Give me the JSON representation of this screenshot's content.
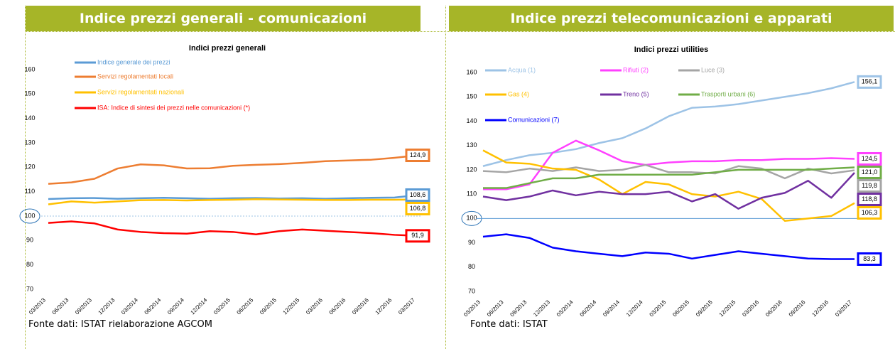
{
  "headers": [
    "Indice prezzi generali - comunicazioni",
    "Indice prezzi telecomunicazioni e apparati"
  ],
  "sources": [
    "Fonte dati: ISTAT rielaborazione AGCOM",
    "Fonte dati: ISTAT"
  ],
  "chart_data": [
    {
      "type": "line",
      "title": "Indici prezzi generali",
      "categories": [
        "03/2013",
        "06/2013",
        "09/2013",
        "12/2013",
        "03/2014",
        "06/2014",
        "09/2014",
        "12/2014",
        "03/2015",
        "06/2015",
        "09/2015",
        "12/2015",
        "03/2016",
        "06/2016",
        "09/2016",
        "12/2016",
        "03/2017"
      ],
      "ylim": [
        70,
        160
      ],
      "yticks": [
        70,
        80,
        90,
        100,
        110,
        120,
        130,
        140,
        150,
        160
      ],
      "reference_line": 100,
      "series": [
        {
          "name": "Indice generale dei prezzi",
          "color": "#5b9bd5",
          "values": [
            107.0,
            107.3,
            107.4,
            107.1,
            107.3,
            107.5,
            107.3,
            107.1,
            107.3,
            107.4,
            107.2,
            107.3,
            107.1,
            107.3,
            107.5,
            107.6,
            108.6
          ],
          "value_labels": [
            null,
            null,
            null,
            null,
            null,
            null,
            null,
            null,
            null,
            null,
            null,
            null,
            null,
            null,
            null,
            null,
            "108,6"
          ]
        },
        {
          "name": "Servizi regolamentati locali",
          "color": "#ed7d31",
          "values": [
            113.2,
            113.8,
            115.3,
            119.5,
            121.2,
            120.8,
            119.5,
            119.6,
            120.6,
            121.0,
            121.3,
            121.8,
            122.5,
            122.8,
            123.1,
            123.9,
            124.9
          ],
          "value_labels": [
            null,
            null,
            null,
            null,
            null,
            null,
            null,
            null,
            null,
            null,
            null,
            null,
            null,
            null,
            null,
            null,
            "124,9"
          ]
        },
        {
          "name": "Servizi regolamentati nazionali",
          "color": "#ffc000",
          "values": [
            104.8,
            106.0,
            105.5,
            106.0,
            106.5,
            106.6,
            106.4,
            106.6,
            106.7,
            106.9,
            106.8,
            106.7,
            106.6,
            106.6,
            106.7,
            106.7,
            106.8
          ],
          "value_labels": [
            null,
            null,
            null,
            null,
            null,
            null,
            null,
            null,
            null,
            null,
            null,
            null,
            null,
            null,
            null,
            null,
            "106,8"
          ]
        },
        {
          "name": "ISA: Indice di sintesi dei prezzi nelle comunicazioni (*)",
          "color": "#ff0000",
          "values": [
            97.2,
            97.8,
            97.0,
            94.5,
            93.5,
            93.0,
            92.8,
            93.8,
            93.5,
            92.5,
            93.8,
            94.5,
            94.0,
            93.5,
            93.0,
            92.3,
            91.9
          ],
          "value_labels": [
            null,
            null,
            null,
            null,
            null,
            null,
            null,
            null,
            null,
            null,
            null,
            null,
            null,
            null,
            null,
            null,
            "91,9"
          ]
        }
      ]
    },
    {
      "type": "line",
      "title": "Indici prezzi utilities",
      "categories": [
        "03/2013",
        "06/2013",
        "09/2013",
        "12/2013",
        "03/2014",
        "06/2014",
        "09/2014",
        "12/2014",
        "03/2015",
        "06/2015",
        "09/2015",
        "12/2015",
        "03/2016",
        "06/2016",
        "09/2016",
        "12/2016",
        "03/2017"
      ],
      "ylim": [
        70,
        160
      ],
      "yticks": [
        70,
        80,
        90,
        100,
        110,
        120,
        130,
        140,
        150,
        160
      ],
      "reference_line": 100,
      "series": [
        {
          "name": "Acqua (1)",
          "color": "#9dc3e6",
          "values": [
            121.5,
            124,
            126,
            127,
            128.5,
            131,
            133,
            137,
            142,
            145.5,
            146,
            147,
            148.5,
            150,
            151.5,
            153.5,
            156.1
          ],
          "value_labels": [
            null,
            null,
            null,
            null,
            null,
            null,
            null,
            null,
            null,
            null,
            null,
            null,
            null,
            null,
            null,
            null,
            "156,1"
          ]
        },
        {
          "name": "Rifiuti (2)",
          "color": "#ff40ff",
          "values": [
            112,
            112,
            114,
            127,
            132,
            128,
            123.5,
            122,
            123,
            123.5,
            123.5,
            124,
            124,
            124.5,
            124.5,
            124.8,
            124.5
          ],
          "value_labels": [
            null,
            null,
            null,
            null,
            null,
            null,
            null,
            null,
            null,
            null,
            null,
            null,
            null,
            null,
            null,
            null,
            "124,5"
          ]
        },
        {
          "name": "Luce (3)",
          "color": "#a5a5a5",
          "values": [
            119.5,
            119,
            120.5,
            119.5,
            121,
            119.5,
            120,
            122,
            119,
            119,
            118.5,
            121.5,
            120.5,
            116.5,
            120.5,
            118.5,
            119.8
          ],
          "value_labels": [
            null,
            null,
            null,
            null,
            null,
            null,
            null,
            null,
            null,
            null,
            null,
            null,
            null,
            null,
            null,
            null,
            "119,8"
          ]
        },
        {
          "name": "Gas (4)",
          "color": "#ffc000",
          "values": [
            128,
            123,
            122.5,
            120.5,
            120,
            116,
            110,
            115,
            114,
            110,
            109,
            111,
            108,
            99,
            100,
            101,
            106.3
          ],
          "value_labels": [
            null,
            null,
            null,
            null,
            null,
            null,
            null,
            null,
            null,
            null,
            null,
            null,
            null,
            null,
            null,
            null,
            "106,3"
          ]
        },
        {
          "name": "Treno (5)",
          "color": "#7030a0",
          "values": [
            109,
            107.5,
            109,
            111.5,
            109.5,
            111,
            110,
            110,
            111,
            107,
            110,
            104,
            108.5,
            110.5,
            115.5,
            108.5,
            118.8
          ],
          "value_labels": [
            null,
            null,
            null,
            null,
            null,
            null,
            null,
            null,
            null,
            null,
            null,
            null,
            null,
            null,
            null,
            null,
            "118,8"
          ]
        },
        {
          "name": "Trasporti urbani (6)",
          "color": "#70ad47",
          "values": [
            112.5,
            112.5,
            114.5,
            116.5,
            116.5,
            118,
            118,
            118,
            118,
            118,
            119,
            120,
            120,
            120,
            120,
            120.5,
            121.0
          ],
          "value_labels": [
            null,
            null,
            null,
            null,
            null,
            null,
            null,
            null,
            null,
            null,
            null,
            null,
            null,
            null,
            null,
            null,
            "121,0"
          ]
        },
        {
          "name": "Comunicazioni (7)",
          "color": "#0000ff",
          "values": [
            92.5,
            93.5,
            92,
            88,
            86.5,
            85.5,
            84.5,
            86,
            85.5,
            83.5,
            85,
            86.5,
            85.5,
            84.5,
            83.5,
            83.3,
            83.3
          ],
          "value_labels": [
            null,
            null,
            null,
            null,
            null,
            null,
            null,
            null,
            null,
            null,
            null,
            null,
            null,
            null,
            null,
            null,
            "83,3"
          ]
        }
      ]
    }
  ]
}
